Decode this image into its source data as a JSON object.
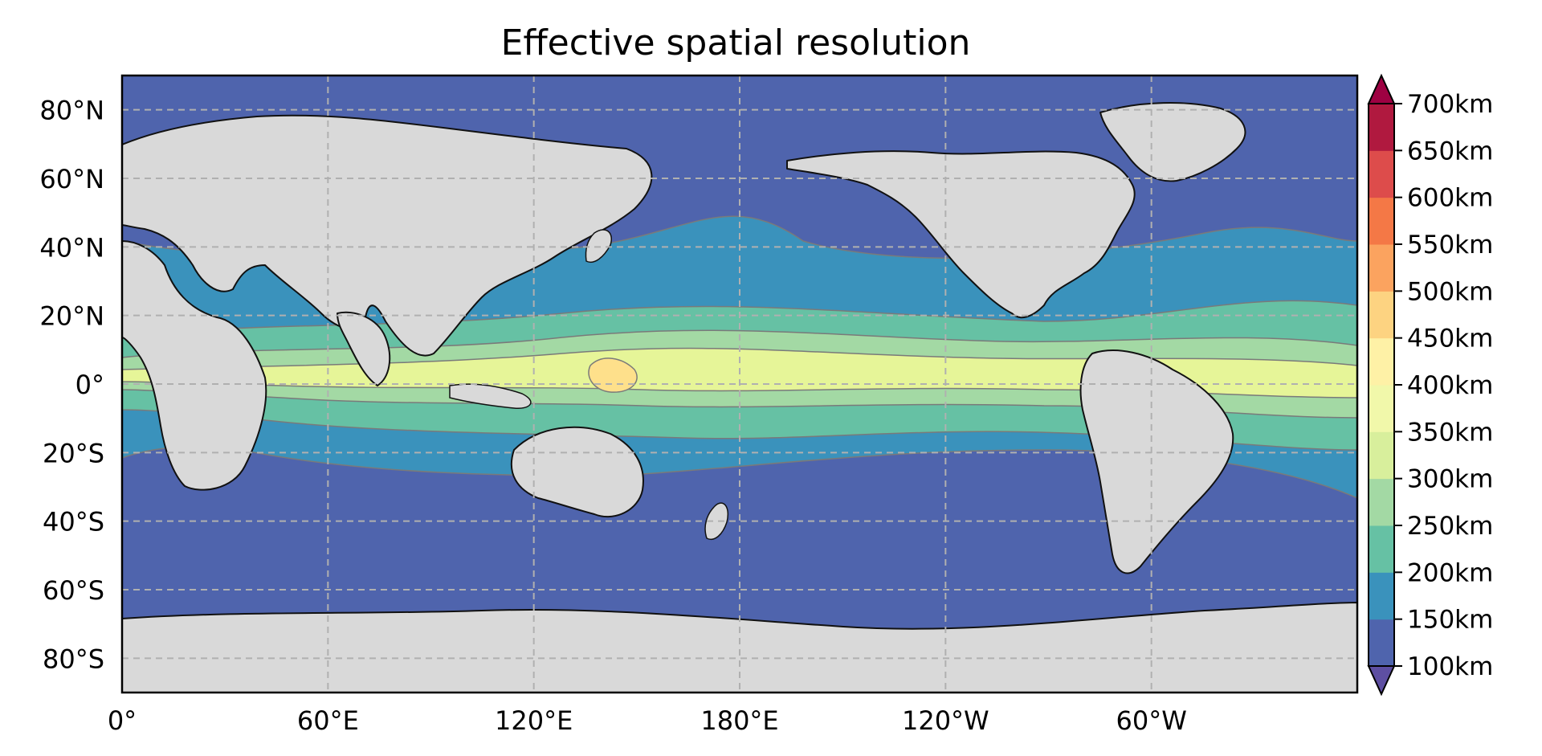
{
  "title": "Effective spatial resolution",
  "colors": {
    "land": "#d9d9d9",
    "grid": "#b0b0b0",
    "coast": "#111111",
    "contour_line": "#7a7a7a",
    "bands": [
      "#5e4fa2",
      "#4f64ad",
      "#3a92bc",
      "#66c1a4",
      "#a3d9a4",
      "#e6f598",
      "#fee08b",
      "#fdae61",
      "#f46d43",
      "#d53e4f",
      "#9e0142"
    ]
  },
  "lat_ticks": [
    "80°N",
    "60°N",
    "40°N",
    "20°N",
    "0°",
    "20°S",
    "40°S",
    "60°S",
    "80°S"
  ],
  "lon_ticks": [
    "0°",
    "60°E",
    "120°E",
    "180°E",
    "120°W",
    "60°W"
  ],
  "colorbar": {
    "labels": [
      "100km",
      "150km",
      "200km",
      "250km",
      "300km",
      "350km",
      "400km",
      "450km",
      "500km",
      "550km",
      "600km",
      "650km",
      "700km"
    ],
    "extend": "both",
    "segment_colors": [
      "#4f64ad",
      "#3a92bc",
      "#66c1a4",
      "#a3d9a4",
      "#d8ef9c",
      "#f1f8aa",
      "#fef1a6",
      "#fdd381",
      "#fba35f",
      "#f47846",
      "#dd4c4b",
      "#b0193f"
    ],
    "low_color": "#5e4fa2",
    "high_color": "#9e0142"
  }
}
